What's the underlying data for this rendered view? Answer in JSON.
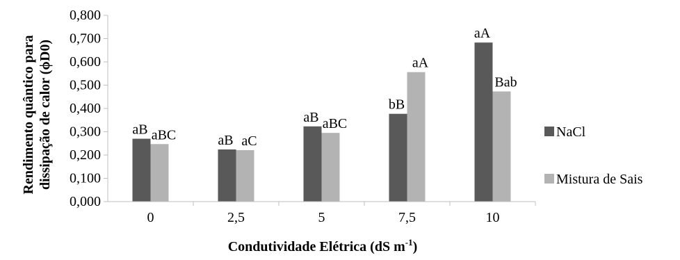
{
  "chart_data": {
    "type": "bar",
    "categories": [
      "0",
      "2,5",
      "5",
      "7,5",
      "10"
    ],
    "series": [
      {
        "name": "NaCl",
        "values": [
          0.27,
          0.224,
          0.323,
          0.377,
          0.683
        ],
        "labels": [
          "aB",
          "aB",
          "aB",
          "bB",
          "aA"
        ],
        "color": "#595959"
      },
      {
        "name": "Mistura de Sais",
        "values": [
          0.247,
          0.221,
          0.295,
          0.556,
          0.473
        ],
        "labels": [
          "aBC",
          "aC",
          "aBC",
          "aA",
          "Bab"
        ],
        "color": "#b3b3b3"
      }
    ],
    "xlabel": "Condutividade Elétrica (dS m",
    "xlabel_sup": "-1",
    "xlabel_end": ")",
    "ylabel_line1": "Rendimento quântico para",
    "ylabel_line2": "dissipação de calor (ϕD0)",
    "ylim": [
      0,
      0.8
    ],
    "yticks": [
      "0,000",
      "0,100",
      "0,200",
      "0,300",
      "0,400",
      "0,500",
      "0,600",
      "0,700",
      "0,800"
    ],
    "grid": false,
    "legend": "right"
  }
}
